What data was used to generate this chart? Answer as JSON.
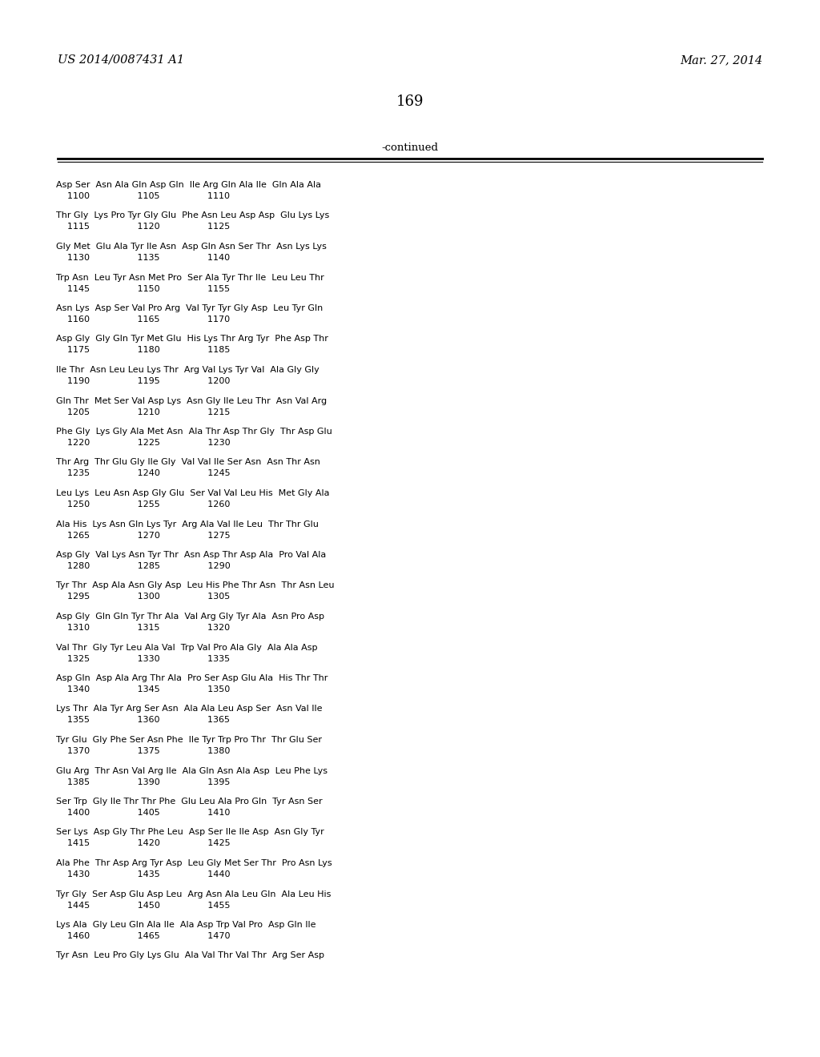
{
  "patent_number": "US 2014/0087431 A1",
  "date": "Mar. 27, 2014",
  "page_number": "169",
  "continued_label": "-continued",
  "background_color": "#ffffff",
  "text_color": "#000000",
  "lines": [
    {
      "seq": "Asp Ser  Asn Ala Gln Asp Gln  Ile Arg Gln Ala Ile  Gln Ala Ala",
      "nums": "    1100                 1105                 1110"
    },
    {
      "seq": "Thr Gly  Lys Pro Tyr Gly Glu  Phe Asn Leu Asp Asp  Glu Lys Lys",
      "nums": "    1115                 1120                 1125"
    },
    {
      "seq": "Gly Met  Glu Ala Tyr Ile Asn  Asp Gln Asn Ser Thr  Asn Lys Lys",
      "nums": "    1130                 1135                 1140"
    },
    {
      "seq": "Trp Asn  Leu Tyr Asn Met Pro  Ser Ala Tyr Thr Ile  Leu Leu Thr",
      "nums": "    1145                 1150                 1155"
    },
    {
      "seq": "Asn Lys  Asp Ser Val Pro Arg  Val Tyr Tyr Gly Asp  Leu Tyr Gln",
      "nums": "    1160                 1165                 1170"
    },
    {
      "seq": "Asp Gly  Gly Gln Tyr Met Glu  His Lys Thr Arg Tyr  Phe Asp Thr",
      "nums": "    1175                 1180                 1185"
    },
    {
      "seq": "Ile Thr  Asn Leu Leu Lys Thr  Arg Val Lys Tyr Val  Ala Gly Gly",
      "nums": "    1190                 1195                 1200"
    },
    {
      "seq": "Gln Thr  Met Ser Val Asp Lys  Asn Gly Ile Leu Thr  Asn Val Arg",
      "nums": "    1205                 1210                 1215"
    },
    {
      "seq": "Phe Gly  Lys Gly Ala Met Asn  Ala Thr Asp Thr Gly  Thr Asp Glu",
      "nums": "    1220                 1225                 1230"
    },
    {
      "seq": "Thr Arg  Thr Glu Gly Ile Gly  Val Val Ile Ser Asn  Asn Thr Asn",
      "nums": "    1235                 1240                 1245"
    },
    {
      "seq": "Leu Lys  Leu Asn Asp Gly Glu  Ser Val Val Leu His  Met Gly Ala",
      "nums": "    1250                 1255                 1260"
    },
    {
      "seq": "Ala His  Lys Asn Gln Lys Tyr  Arg Ala Val Ile Leu  Thr Thr Glu",
      "nums": "    1265                 1270                 1275"
    },
    {
      "seq": "Asp Gly  Val Lys Asn Tyr Thr  Asn Asp Thr Asp Ala  Pro Val Ala",
      "nums": "    1280                 1285                 1290"
    },
    {
      "seq": "Tyr Thr  Asp Ala Asn Gly Asp  Leu His Phe Thr Asn  Thr Asn Leu",
      "nums": "    1295                 1300                 1305"
    },
    {
      "seq": "Asp Gly  Gln Gln Tyr Thr Ala  Val Arg Gly Tyr Ala  Asn Pro Asp",
      "nums": "    1310                 1315                 1320"
    },
    {
      "seq": "Val Thr  Gly Tyr Leu Ala Val  Trp Val Pro Ala Gly  Ala Ala Asp",
      "nums": "    1325                 1330                 1335"
    },
    {
      "seq": "Asp Gln  Asp Ala Arg Thr Ala  Pro Ser Asp Glu Ala  His Thr Thr",
      "nums": "    1340                 1345                 1350"
    },
    {
      "seq": "Lys Thr  Ala Tyr Arg Ser Asn  Ala Ala Leu Asp Ser  Asn Val Ile",
      "nums": "    1355                 1360                 1365"
    },
    {
      "seq": "Tyr Glu  Gly Phe Ser Asn Phe  Ile Tyr Trp Pro Thr  Thr Glu Ser",
      "nums": "    1370                 1375                 1380"
    },
    {
      "seq": "Glu Arg  Thr Asn Val Arg Ile  Ala Gln Asn Ala Asp  Leu Phe Lys",
      "nums": "    1385                 1390                 1395"
    },
    {
      "seq": "Ser Trp  Gly Ile Thr Thr Phe  Glu Leu Ala Pro Gln  Tyr Asn Ser",
      "nums": "    1400                 1405                 1410"
    },
    {
      "seq": "Ser Lys  Asp Gly Thr Phe Leu  Asp Ser Ile Ile Asp  Asn Gly Tyr",
      "nums": "    1415                 1420                 1425"
    },
    {
      "seq": "Ala Phe  Thr Asp Arg Tyr Asp  Leu Gly Met Ser Thr  Pro Asn Lys",
      "nums": "    1430                 1435                 1440"
    },
    {
      "seq": "Tyr Gly  Ser Asp Glu Asp Leu  Arg Asn Ala Leu Gln  Ala Leu His",
      "nums": "    1445                 1450                 1455"
    },
    {
      "seq": "Lys Ala  Gly Leu Gln Ala Ile  Ala Asp Trp Val Pro  Asp Gln Ile",
      "nums": "    1460                 1465                 1470"
    },
    {
      "seq": "Tyr Asn  Leu Pro Gly Lys Glu  Ala Val Thr Val Thr  Arg Ser Asp",
      "nums": ""
    }
  ]
}
